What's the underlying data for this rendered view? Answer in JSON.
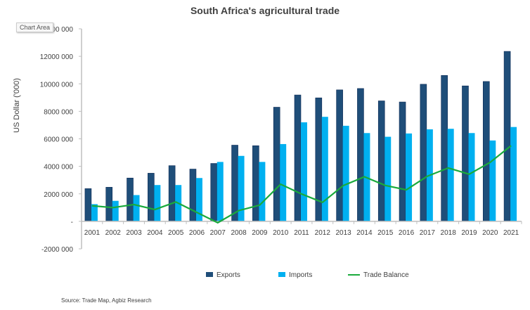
{
  "tooltip": "Chart Area",
  "chart_data": {
    "type": "bar",
    "title": "South Africa's agricultural trade",
    "ylabel": "US Dollar ('000)",
    "xlabel": "",
    "ylim": [
      -2000000,
      14000000
    ],
    "yticks": [
      -2000000,
      0,
      2000000,
      4000000,
      6000000,
      8000000,
      10000000,
      12000000,
      14000000
    ],
    "ytick_labels": [
      "-2000 000",
      "-",
      "2000 000",
      "4000 000",
      "6000 000",
      "8000 000",
      "10000 000",
      "12000 000",
      "14000 000"
    ],
    "grid": false,
    "legend": "bottom",
    "categories": [
      "2001",
      "2002",
      "2003",
      "2004",
      "2005",
      "2006",
      "2007",
      "2008",
      "2009",
      "2010",
      "2011",
      "2012",
      "2013",
      "2014",
      "2015",
      "2016",
      "2017",
      "2018",
      "2019",
      "2020",
      "2021"
    ],
    "series": [
      {
        "name": "Exports",
        "type": "bar",
        "color": "#1f4e79",
        "values": [
          2380000,
          2480000,
          3150000,
          3500000,
          4050000,
          3800000,
          4210000,
          5540000,
          5500000,
          8300000,
          9190000,
          8980000,
          9560000,
          9660000,
          8760000,
          8680000,
          9970000,
          10610000,
          9850000,
          10170000,
          12360000
        ]
      },
      {
        "name": "Imports",
        "type": "bar",
        "color": "#00b0f0",
        "values": [
          1250000,
          1490000,
          1910000,
          2640000,
          2640000,
          3150000,
          4320000,
          4760000,
          4320000,
          5620000,
          7200000,
          7600000,
          6950000,
          6420000,
          6150000,
          6390000,
          6690000,
          6730000,
          6420000,
          5880000,
          6860000
        ]
      },
      {
        "name": "Trade Balance",
        "type": "line",
        "color": "#1aaa3c",
        "values": [
          1130000,
          1000000,
          1220000,
          860000,
          1410000,
          650000,
          -100000,
          780000,
          1180000,
          2700000,
          1990000,
          1380000,
          2610000,
          3240000,
          2610000,
          2290000,
          3280000,
          3880000,
          3430000,
          4290000,
          5500000
        ]
      }
    ],
    "source": "Source: Trade Map, Agbiz Research"
  }
}
